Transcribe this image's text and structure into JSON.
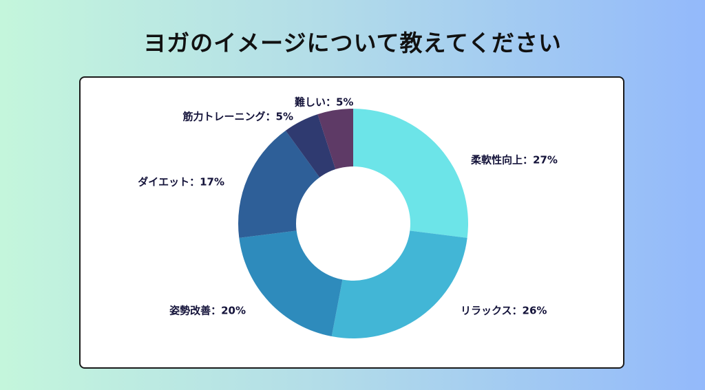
{
  "page": {
    "title": "ヨガのイメージについて教えてください"
  },
  "chart_data": {
    "type": "pie",
    "style": "donut",
    "slices": [
      {
        "label": "柔軟性向上：27%",
        "name": "柔軟性向上",
        "value": 27,
        "color": "#6ce4e8"
      },
      {
        "label": "リラックス：26%",
        "name": "リラックス",
        "value": 26,
        "color": "#42b6d6"
      },
      {
        "label": "姿勢改善：20%",
        "name": "姿勢改善",
        "value": 20,
        "color": "#2e8bbc"
      },
      {
        "label": "ダイエット：17%",
        "name": "ダイエット",
        "value": 17,
        "color": "#2e5f98"
      },
      {
        "label": "筋力トレーニング：5%",
        "name": "筋力トレーニング",
        "value": 5,
        "color": "#2f3a70"
      },
      {
        "label": "難しい：5%",
        "name": "難しい",
        "value": 5,
        "color": "#5e3a66"
      }
    ]
  }
}
